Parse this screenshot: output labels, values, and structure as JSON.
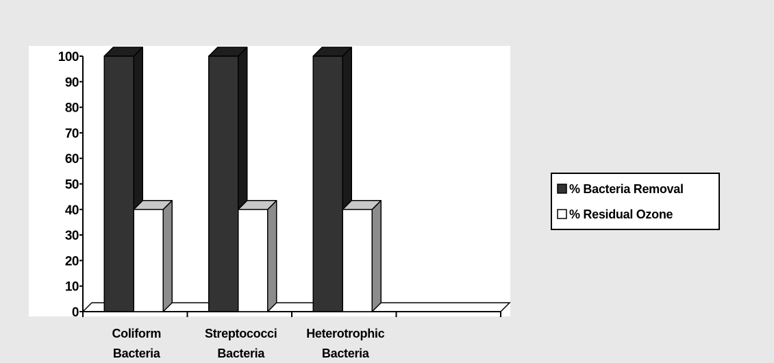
{
  "chart_data": {
    "type": "bar",
    "title": "",
    "xlabel": "",
    "ylabel": "",
    "categories": [
      [
        "Coliform",
        "Bacteria"
      ],
      [
        "Streptococci",
        "Bacteria"
      ],
      [
        "Heterotrophic",
        "Bacteria"
      ]
    ],
    "category_slots": 4,
    "series": [
      {
        "name": "% Bacteria Removal",
        "values": [
          100,
          100,
          100
        ]
      },
      {
        "name": "% Residual Ozone",
        "values": [
          40,
          40,
          40
        ]
      }
    ],
    "ylim": [
      0,
      100
    ],
    "yticks": [
      0,
      10,
      20,
      30,
      40,
      50,
      60,
      70,
      80,
      90,
      100
    ],
    "grid": false,
    "three_d": true,
    "legend_position": "right",
    "colors": {
      "background": "#e8e8e8",
      "plot_area": "#ffffff",
      "series_fronts": [
        "#333333",
        "#ffffff"
      ],
      "series_tops": [
        "#1e1e1e",
        "#c8c8c8"
      ],
      "series_sides": [
        "#1a1a1a",
        "#8c8c8c"
      ],
      "axis": "#000000"
    }
  }
}
